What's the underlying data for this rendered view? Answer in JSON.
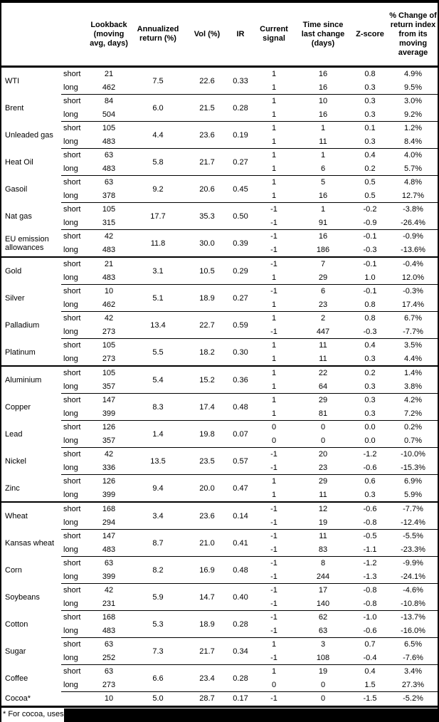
{
  "chart_data": {
    "type": "table",
    "columns": [
      "",
      "",
      "Lookback (moving avg, days)",
      "Annualized return (%)",
      "Vol (%)",
      "IR",
      "Current signal",
      "Time since last change (days)",
      "Z-score",
      "% Change of return index from its moving average"
    ],
    "sections": [
      {
        "id": "energy",
        "commodities": [
          {
            "name": "WTI",
            "annualized_return": "7.5",
            "vol": "22.6",
            "ir": "0.33",
            "rows": [
              {
                "horizon": "short",
                "lookback": "21",
                "signal": "1",
                "days_since": "16",
                "z": "0.8",
                "pct": "4.9%"
              },
              {
                "horizon": "long",
                "lookback": "462",
                "signal": "1",
                "days_since": "16",
                "z": "0.3",
                "pct": "9.5%"
              }
            ]
          },
          {
            "name": "Brent",
            "annualized_return": "6.0",
            "vol": "21.5",
            "ir": "0.28",
            "rows": [
              {
                "horizon": "short",
                "lookback": "84",
                "signal": "1",
                "days_since": "10",
                "z": "0.3",
                "pct": "3.0%"
              },
              {
                "horizon": "long",
                "lookback": "504",
                "signal": "1",
                "days_since": "16",
                "z": "0.3",
                "pct": "9.2%"
              }
            ]
          },
          {
            "name": "Unleaded gas",
            "annualized_return": "4.4",
            "vol": "23.6",
            "ir": "0.19",
            "rows": [
              {
                "horizon": "short",
                "lookback": "105",
                "signal": "1",
                "days_since": "1",
                "z": "0.1",
                "pct": "1.2%"
              },
              {
                "horizon": "long",
                "lookback": "483",
                "signal": "1",
                "days_since": "11",
                "z": "0.3",
                "pct": "8.4%"
              }
            ]
          },
          {
            "name": "Heat Oil",
            "annualized_return": "5.8",
            "vol": "21.7",
            "ir": "0.27",
            "rows": [
              {
                "horizon": "short",
                "lookback": "63",
                "signal": "1",
                "days_since": "1",
                "z": "0.4",
                "pct": "4.0%"
              },
              {
                "horizon": "long",
                "lookback": "483",
                "signal": "1",
                "days_since": "6",
                "z": "0.2",
                "pct": "5.7%"
              }
            ]
          },
          {
            "name": "Gasoil",
            "annualized_return": "9.2",
            "vol": "20.6",
            "ir": "0.45",
            "rows": [
              {
                "horizon": "short",
                "lookback": "63",
                "signal": "1",
                "days_since": "5",
                "z": "0.5",
                "pct": "4.8%"
              },
              {
                "horizon": "long",
                "lookback": "378",
                "signal": "1",
                "days_since": "16",
                "z": "0.5",
                "pct": "12.7%"
              }
            ]
          },
          {
            "name": "Nat gas",
            "annualized_return": "17.7",
            "vol": "35.3",
            "ir": "0.50",
            "rows": [
              {
                "horizon": "short",
                "lookback": "105",
                "signal": "-1",
                "days_since": "1",
                "z": "-0.2",
                "pct": "-3.8%"
              },
              {
                "horizon": "long",
                "lookback": "315",
                "signal": "-1",
                "days_since": "91",
                "z": "-0.9",
                "pct": "-26.4%"
              }
            ]
          },
          {
            "name": "EU emission allowances",
            "annualized_return": "11.8",
            "vol": "30.0",
            "ir": "0.39",
            "rows": [
              {
                "horizon": "short",
                "lookback": "42",
                "signal": "-1",
                "days_since": "16",
                "z": "-0.1",
                "pct": "-0.9%"
              },
              {
                "horizon": "long",
                "lookback": "483",
                "signal": "-1",
                "days_since": "186",
                "z": "-0.3",
                "pct": "-13.6%"
              }
            ]
          }
        ]
      },
      {
        "id": "precious-metals",
        "commodities": [
          {
            "name": "Gold",
            "annualized_return": "3.1",
            "vol": "10.5",
            "ir": "0.29",
            "rows": [
              {
                "horizon": "short",
                "lookback": "21",
                "signal": "-1",
                "days_since": "7",
                "z": "-0.1",
                "pct": "-0.4%"
              },
              {
                "horizon": "long",
                "lookback": "483",
                "signal": "1",
                "days_since": "29",
                "z": "1.0",
                "pct": "12.0%"
              }
            ]
          },
          {
            "name": "Silver",
            "annualized_return": "5.1",
            "vol": "18.9",
            "ir": "0.27",
            "rows": [
              {
                "horizon": "short",
                "lookback": "10",
                "signal": "-1",
                "days_since": "6",
                "z": "-0.1",
                "pct": "-0.3%"
              },
              {
                "horizon": "long",
                "lookback": "462",
                "signal": "1",
                "days_since": "23",
                "z": "0.8",
                "pct": "17.4%"
              }
            ]
          },
          {
            "name": "Palladium",
            "annualized_return": "13.4",
            "vol": "22.7",
            "ir": "0.59",
            "rows": [
              {
                "horizon": "short",
                "lookback": "42",
                "signal": "1",
                "days_since": "2",
                "z": "0.8",
                "pct": "6.7%"
              },
              {
                "horizon": "long",
                "lookback": "273",
                "signal": "-1",
                "days_since": "447",
                "z": "-0.3",
                "pct": "-7.7%"
              }
            ]
          },
          {
            "name": "Platinum",
            "annualized_return": "5.5",
            "vol": "18.2",
            "ir": "0.30",
            "rows": [
              {
                "horizon": "short",
                "lookback": "105",
                "signal": "1",
                "days_since": "11",
                "z": "0.4",
                "pct": "3.5%"
              },
              {
                "horizon": "long",
                "lookback": "273",
                "signal": "1",
                "days_since": "11",
                "z": "0.3",
                "pct": "4.4%"
              }
            ]
          }
        ]
      },
      {
        "id": "base-metals",
        "commodities": [
          {
            "name": "Aluminium",
            "annualized_return": "5.4",
            "vol": "15.2",
            "ir": "0.36",
            "rows": [
              {
                "horizon": "short",
                "lookback": "105",
                "signal": "1",
                "days_since": "22",
                "z": "0.2",
                "pct": "1.4%"
              },
              {
                "horizon": "long",
                "lookback": "357",
                "signal": "1",
                "days_since": "64",
                "z": "0.3",
                "pct": "3.8%"
              }
            ]
          },
          {
            "name": "Copper",
            "annualized_return": "8.3",
            "vol": "17.4",
            "ir": "0.48",
            "rows": [
              {
                "horizon": "short",
                "lookback": "147",
                "signal": "1",
                "days_since": "29",
                "z": "0.3",
                "pct": "4.2%"
              },
              {
                "horizon": "long",
                "lookback": "399",
                "signal": "1",
                "days_since": "81",
                "z": "0.3",
                "pct": "7.2%"
              }
            ]
          },
          {
            "name": "Lead",
            "annualized_return": "1.4",
            "vol": "19.8",
            "ir": "0.07",
            "rows": [
              {
                "horizon": "short",
                "lookback": "126",
                "signal": "0",
                "days_since": "0",
                "z": "0.0",
                "pct": "0.2%"
              },
              {
                "horizon": "long",
                "lookback": "357",
                "signal": "0",
                "days_since": "0",
                "z": "0.0",
                "pct": "0.7%"
              }
            ]
          },
          {
            "name": "Nickel",
            "annualized_return": "13.5",
            "vol": "23.5",
            "ir": "0.57",
            "rows": [
              {
                "horizon": "short",
                "lookback": "42",
                "signal": "-1",
                "days_since": "20",
                "z": "-1.2",
                "pct": "-10.0%"
              },
              {
                "horizon": "long",
                "lookback": "336",
                "signal": "-1",
                "days_since": "23",
                "z": "-0.6",
                "pct": "-15.3%"
              }
            ]
          },
          {
            "name": "Zinc",
            "annualized_return": "9.4",
            "vol": "20.0",
            "ir": "0.47",
            "rows": [
              {
                "horizon": "short",
                "lookback": "126",
                "signal": "1",
                "days_since": "29",
                "z": "0.6",
                "pct": "6.9%"
              },
              {
                "horizon": "long",
                "lookback": "399",
                "signal": "1",
                "days_since": "11",
                "z": "0.3",
                "pct": "5.9%"
              }
            ]
          }
        ]
      },
      {
        "id": "agriculture",
        "commodities": [
          {
            "name": "Wheat",
            "annualized_return": "3.4",
            "vol": "23.6",
            "ir": "0.14",
            "rows": [
              {
                "horizon": "short",
                "lookback": "168",
                "signal": "-1",
                "days_since": "12",
                "z": "-0.6",
                "pct": "-7.7%"
              },
              {
                "horizon": "long",
                "lookback": "294",
                "signal": "-1",
                "days_since": "19",
                "z": "-0.8",
                "pct": "-12.4%"
              }
            ]
          },
          {
            "name": "Kansas wheat",
            "annualized_return": "8.7",
            "vol": "21.0",
            "ir": "0.41",
            "rows": [
              {
                "horizon": "short",
                "lookback": "147",
                "signal": "-1",
                "days_since": "11",
                "z": "-0.5",
                "pct": "-5.5%"
              },
              {
                "horizon": "long",
                "lookback": "483",
                "signal": "-1",
                "days_since": "83",
                "z": "-1.1",
                "pct": "-23.3%"
              }
            ]
          },
          {
            "name": "Corn",
            "annualized_return": "8.2",
            "vol": "16.9",
            "ir": "0.48",
            "rows": [
              {
                "horizon": "short",
                "lookback": "63",
                "signal": "-1",
                "days_since": "8",
                "z": "-1.2",
                "pct": "-9.9%"
              },
              {
                "horizon": "long",
                "lookback": "399",
                "signal": "-1",
                "days_since": "244",
                "z": "-1.3",
                "pct": "-24.1%"
              }
            ]
          },
          {
            "name": "Soybeans",
            "annualized_return": "5.9",
            "vol": "14.7",
            "ir": "0.40",
            "rows": [
              {
                "horizon": "short",
                "lookback": "42",
                "signal": "-1",
                "days_since": "17",
                "z": "-0.8",
                "pct": "-4.6%"
              },
              {
                "horizon": "long",
                "lookback": "231",
                "signal": "-1",
                "days_since": "140",
                "z": "-0.8",
                "pct": "-10.8%"
              }
            ]
          },
          {
            "name": "Cotton",
            "annualized_return": "5.3",
            "vol": "18.9",
            "ir": "0.28",
            "rows": [
              {
                "horizon": "short",
                "lookback": "168",
                "signal": "-1",
                "days_since": "62",
                "z": "-1.0",
                "pct": "-13.7%"
              },
              {
                "horizon": "long",
                "lookback": "483",
                "signal": "-1",
                "days_since": "63",
                "z": "-0.6",
                "pct": "-16.0%"
              }
            ]
          },
          {
            "name": "Sugar",
            "annualized_return": "7.3",
            "vol": "21.7",
            "ir": "0.34",
            "rows": [
              {
                "horizon": "short",
                "lookback": "63",
                "signal": "1",
                "days_since": "3",
                "z": "0.7",
                "pct": "6.5%"
              },
              {
                "horizon": "long",
                "lookback": "252",
                "signal": "-1",
                "days_since": "108",
                "z": "-0.4",
                "pct": "-7.6%"
              }
            ]
          },
          {
            "name": "Coffee",
            "annualized_return": "6.6",
            "vol": "23.4",
            "ir": "0.28",
            "rows": [
              {
                "horizon": "short",
                "lookback": "63",
                "signal": "1",
                "days_since": "19",
                "z": "0.4",
                "pct": "3.4%"
              },
              {
                "horizon": "long",
                "lookback": "273",
                "signal": "0",
                "days_since": "0",
                "z": "1.5",
                "pct": "27.3%"
              }
            ]
          },
          {
            "name": "Cocoa*",
            "annualized_return": "5.0",
            "vol": "28.7",
            "ir": "0.17",
            "rows": [
              {
                "horizon": "",
                "lookback": "10",
                "signal": "-1",
                "days_since": "0",
                "z": "-1.5",
                "pct": "-5.2%"
              }
            ]
          }
        ]
      }
    ],
    "footnote": "* For cocoa, uses"
  }
}
